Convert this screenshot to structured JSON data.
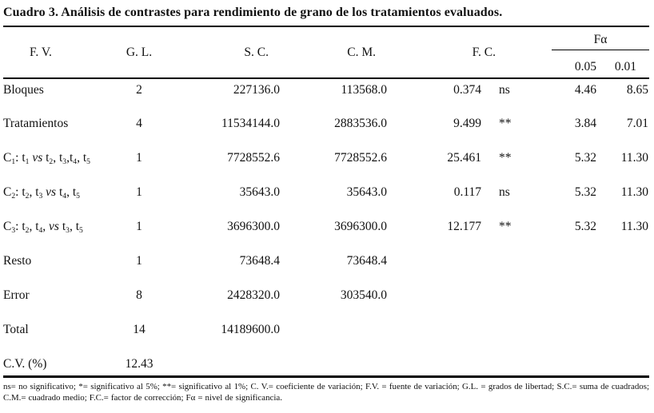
{
  "title": {
    "text": "Cuadro 3. Análisis de contrastes para rendimiento de grano de los tratamientos evaluados."
  },
  "table": {
    "headers": {
      "fv": "F. V.",
      "gl": "G. L.",
      "sc": "S. C.",
      "cm": "C. M.",
      "fc": "F. C.",
      "fa": "Fα",
      "f05": "0.05",
      "f01": "0.01"
    },
    "rows": [
      {
        "fv": [
          [
            "t",
            "Bloques"
          ]
        ],
        "gl": "2",
        "sc": "227136.0",
        "cm": "113568.0",
        "fc": "0.374",
        "sig": "ns",
        "f05": "4.46",
        "f01": "8.65"
      },
      {
        "fv": [
          [
            "t",
            "Tratamientos"
          ]
        ],
        "gl": "4",
        "sc": "11534144.0",
        "cm": "2883536.0",
        "fc": "9.499",
        "sig": "**",
        "f05": "3.84",
        "f01": "7.01"
      },
      {
        "fv": [
          [
            "t",
            "C"
          ],
          [
            "sub",
            "1"
          ],
          [
            "t",
            ": t"
          ],
          [
            "sub",
            "1"
          ],
          [
            "t",
            " "
          ],
          [
            "i",
            "vs"
          ],
          [
            "t",
            " t"
          ],
          [
            "sub",
            "2"
          ],
          [
            "t",
            ", t"
          ],
          [
            "sub",
            "3"
          ],
          [
            "t",
            ",t"
          ],
          [
            "sub",
            "4"
          ],
          [
            "t",
            ", t"
          ],
          [
            "sub",
            "5"
          ]
        ],
        "gl": "1",
        "sc": "7728552.6",
        "cm": "7728552.6",
        "fc": "25.461",
        "sig": "**",
        "f05": "5.32",
        "f01": "11.30"
      },
      {
        "fv": [
          [
            "t",
            "C"
          ],
          [
            "sub",
            "2"
          ],
          [
            "t",
            ": t"
          ],
          [
            "sub",
            "2"
          ],
          [
            "t",
            ", t"
          ],
          [
            "sub",
            "3"
          ],
          [
            "t",
            " "
          ],
          [
            "i",
            "vs"
          ],
          [
            "t",
            " t"
          ],
          [
            "sub",
            "4"
          ],
          [
            "t",
            ", t"
          ],
          [
            "sub",
            "5"
          ]
        ],
        "gl": "1",
        "sc": "35643.0",
        "cm": "35643.0",
        "fc": "0.117",
        "sig": "ns",
        "f05": "5.32",
        "f01": "11.30"
      },
      {
        "fv": [
          [
            "t",
            "C"
          ],
          [
            "sub",
            "3"
          ],
          [
            "t",
            ": t"
          ],
          [
            "sub",
            "2"
          ],
          [
            "t",
            ", t"
          ],
          [
            "sub",
            "4"
          ],
          [
            "t",
            ", "
          ],
          [
            "i",
            "vs"
          ],
          [
            "t",
            " t"
          ],
          [
            "sub",
            "3"
          ],
          [
            "t",
            ", t"
          ],
          [
            "sub",
            "5"
          ]
        ],
        "gl": "1",
        "sc": "3696300.0",
        "cm": "3696300.0",
        "fc": "12.177",
        "sig": "**",
        "f05": "5.32",
        "f01": "11.30"
      },
      {
        "fv": [
          [
            "t",
            "Resto"
          ]
        ],
        "gl": "1",
        "sc": "73648.4",
        "cm": "73648.4",
        "fc": "",
        "sig": "",
        "f05": "",
        "f01": ""
      },
      {
        "fv": [
          [
            "t",
            "Error"
          ]
        ],
        "gl": "8",
        "sc": "2428320.0",
        "cm": "303540.0",
        "fc": "",
        "sig": "",
        "f05": "",
        "f01": ""
      },
      {
        "fv": [
          [
            "t",
            "Total"
          ]
        ],
        "gl": "14",
        "sc": "14189600.0",
        "cm": "",
        "fc": "",
        "sig": "",
        "f05": "",
        "f01": ""
      },
      {
        "fv": [
          [
            "t",
            "C.V. (%)"
          ]
        ],
        "gl": "12.43",
        "sc": "",
        "cm": "",
        "fc": "",
        "sig": "",
        "f05": "",
        "f01": ""
      }
    ]
  },
  "footnote": "ns= no significativo; *= significativo al 5%; **= significativo al 1%; C. V.= coeficiente de variación; F.V. = fuente de variación; G.L. = grados de libertad; S.C.= suma de cuadrados; C.M.= cuadrado medio; F.C.= factor de corrección; Fα = nivel de significancia."
}
